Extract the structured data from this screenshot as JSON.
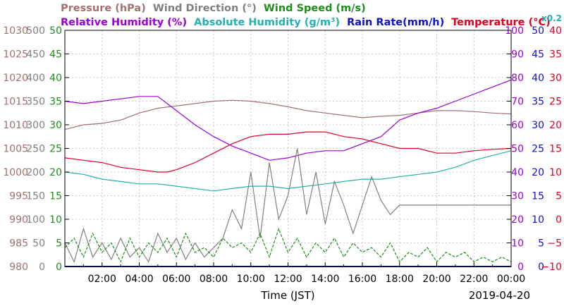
{
  "chart_data": {
    "type": "line",
    "legend_row1": [
      {
        "key": "pressure",
        "text": "Pressure (hPa)",
        "color": "#a17070"
      },
      {
        "key": "wind_dir",
        "text": "Wind Direction (°)",
        "color": "#808080"
      },
      {
        "key": "wind_speed",
        "text": "Wind Speed (m/s)",
        "color": "#1e8c1e"
      }
    ],
    "legend_row2": [
      {
        "key": "rh",
        "text": "Relative Humidity (%)",
        "color": "#9b00d8"
      },
      {
        "key": "ah",
        "text": "Absolute Humidity (g/m³)",
        "color": "#22b0b0"
      },
      {
        "key": "rain",
        "text": "Rain Rate(mm/h)",
        "color": "#1010c8"
      },
      {
        "key": "temp",
        "text": "Temperature (°C)",
        "color": "#e00020"
      }
    ],
    "multiplier_label": "x0.2",
    "xlabel": "Time (JST)",
    "date_label": "2019-04-20",
    "x_ticks": [
      "02:00",
      "04:00",
      "06:00",
      "08:00",
      "10:00",
      "12:00",
      "14:00",
      "16:00",
      "18:00",
      "20:00",
      "22:00",
      "00:00"
    ],
    "axes_left": [
      {
        "key": "pressure",
        "color": "#a17070",
        "ticks": [
          "980",
          "985",
          "990",
          "995",
          "1000",
          "1005",
          "1010",
          "1015",
          "1020",
          "1025",
          "1030"
        ]
      },
      {
        "key": "wind_dir",
        "color": "#808080",
        "ticks": [
          "0",
          "50",
          "100",
          "150",
          "200",
          "250",
          "300",
          "350",
          "400",
          "450",
          "500"
        ]
      },
      {
        "key": "wind_speed",
        "color": "#1e8c1e",
        "ticks": [
          "0",
          "5",
          "10",
          "15",
          "20",
          "25",
          "30",
          "35",
          "40",
          "45",
          "50"
        ]
      }
    ],
    "axes_right": [
      {
        "key": "rh",
        "color": "#9b00d8",
        "ticks": [
          "0",
          "10",
          "20",
          "30",
          "40",
          "50",
          "60",
          "70",
          "80",
          "90",
          "100"
        ]
      },
      {
        "key": "ah_rain",
        "color": "#1010c8",
        "ticks": [
          "0",
          "5",
          "10",
          "15",
          "20",
          "25",
          "30",
          "35",
          "40",
          "45",
          "50"
        ]
      },
      {
        "key": "temp",
        "color": "#e00020",
        "ticks": [
          "−10",
          "−5",
          "0",
          "5",
          "10",
          "15",
          "20",
          "25",
          "30",
          "35",
          "40"
        ]
      }
    ],
    "x_range_hours": [
      0,
      24
    ],
    "series": [
      {
        "name": "Pressure (hPa)",
        "color": "#a17070",
        "axis_range": [
          980,
          1030
        ],
        "x": [
          0,
          1,
          2,
          3,
          4,
          5,
          6,
          7,
          8,
          9,
          10,
          11,
          12,
          13,
          14,
          15,
          16,
          17,
          18,
          19,
          20,
          21,
          22,
          23,
          24
        ],
        "values": [
          1009,
          1010,
          1010.3,
          1011,
          1012.5,
          1013.5,
          1014,
          1014.5,
          1015,
          1015.2,
          1015,
          1014.5,
          1013.8,
          1013,
          1012.5,
          1012,
          1011.5,
          1011.8,
          1012,
          1012.5,
          1013,
          1013,
          1012.8,
          1012.5,
          1012.3
        ]
      },
      {
        "name": "Relative Humidity (%)",
        "color": "#9b00d8",
        "axis_range": [
          0,
          100
        ],
        "x": [
          0,
          1,
          2,
          3,
          4,
          5,
          5.5,
          6,
          7,
          8,
          9,
          10,
          11,
          12,
          13,
          14,
          15,
          16,
          17,
          18,
          19,
          20,
          21,
          22,
          23,
          24
        ],
        "values": [
          70,
          69,
          70,
          71,
          72,
          72,
          69,
          66,
          60,
          55,
          51,
          48,
          45,
          46,
          48,
          49,
          49,
          52,
          55,
          62,
          65,
          67,
          70,
          73,
          76,
          79
        ]
      },
      {
        "name": "Absolute Humidity (g/m³) x0.2",
        "color": "#22b0b0",
        "axis_range": [
          0,
          50
        ],
        "x": [
          0,
          1,
          2,
          3,
          4,
          5,
          6,
          7,
          8,
          9,
          10,
          11,
          12,
          13,
          14,
          15,
          16,
          17,
          18,
          19,
          20,
          21,
          22,
          23,
          24
        ],
        "values": [
          20,
          19.5,
          18.5,
          18,
          17.5,
          17.5,
          17,
          16.5,
          16,
          16.5,
          17,
          17,
          16.5,
          17,
          17.5,
          18,
          18.5,
          18.5,
          19,
          19.5,
          20,
          21,
          22.5,
          23.5,
          24.5
        ]
      },
      {
        "name": "Temperature (°C)",
        "color": "#e00020",
        "axis_range": [
          -10,
          40
        ],
        "x": [
          0,
          1,
          2,
          3,
          4,
          5,
          5.5,
          6,
          7,
          8,
          9,
          10,
          11,
          12,
          13,
          14,
          15,
          16,
          17,
          18,
          19,
          20,
          21,
          22,
          23,
          24
        ],
        "values": [
          13,
          12.5,
          12,
          11,
          10.5,
          10,
          10,
          10.5,
          12,
          14,
          16,
          17.5,
          18,
          18,
          18.5,
          18.5,
          17.5,
          17,
          16,
          15,
          15,
          14,
          14,
          14.5,
          14.8,
          15
        ]
      },
      {
        "name": "Wind Direction (°)",
        "color": "#808080",
        "axis_range": [
          0,
          500
        ],
        "x": [
          0,
          0.5,
          1,
          1.5,
          2,
          2.5,
          3,
          3.5,
          4,
          4.5,
          5,
          5.5,
          6,
          6.5,
          7,
          7.5,
          8,
          8.5,
          9,
          9.5,
          10,
          10.5,
          11,
          11.5,
          12,
          12.5,
          13,
          13.5,
          14,
          14.5,
          15,
          15.5,
          16,
          16.5,
          17,
          17.5,
          18,
          18.5,
          19,
          19.5,
          20,
          20.5,
          21,
          21.5,
          22,
          22.5,
          23,
          23.5,
          24
        ],
        "values": [
          50,
          10,
          80,
          20,
          50,
          15,
          60,
          20,
          40,
          10,
          70,
          30,
          60,
          15,
          50,
          20,
          40,
          60,
          120,
          80,
          200,
          60,
          220,
          100,
          150,
          250,
          110,
          200,
          90,
          180,
          130,
          70,
          130,
          190,
          140,
          110,
          130,
          130,
          130,
          130,
          130,
          130,
          130,
          130,
          130,
          130,
          130,
          130,
          130
        ]
      },
      {
        "name": "Wind Speed (m/s)",
        "color": "#1e8c1e",
        "axis_range": [
          0,
          50
        ],
        "x": [
          0,
          0.5,
          1,
          1.5,
          2,
          2.5,
          3,
          3.5,
          4,
          4.5,
          5,
          5.5,
          6,
          6.5,
          7,
          7.5,
          8,
          8.5,
          9,
          9.5,
          10,
          10.5,
          11,
          11.5,
          12,
          12.5,
          13,
          13.5,
          14,
          14.5,
          15,
          15.5,
          16,
          16.5,
          17,
          17.5,
          18,
          18.5,
          19,
          19.5,
          20,
          20.5,
          21,
          21.5,
          22,
          22.5,
          23,
          23.5,
          24
        ],
        "values": [
          4,
          6,
          2,
          7,
          3,
          5,
          1,
          6,
          2,
          5,
          3,
          6,
          2,
          7,
          3,
          4,
          2,
          6,
          4,
          5,
          3,
          7,
          2,
          8,
          3,
          6,
          2,
          5,
          3,
          6,
          2,
          5,
          3,
          4,
          2,
          5,
          1,
          3,
          2,
          4,
          1,
          3,
          2,
          3,
          1,
          2,
          1,
          2,
          1
        ]
      },
      {
        "name": "Rain Rate(mm/h)",
        "color": "#1010c8",
        "axis_range": [
          0,
          50
        ],
        "x": [
          0,
          24
        ],
        "values": [
          0,
          0
        ]
      }
    ]
  }
}
